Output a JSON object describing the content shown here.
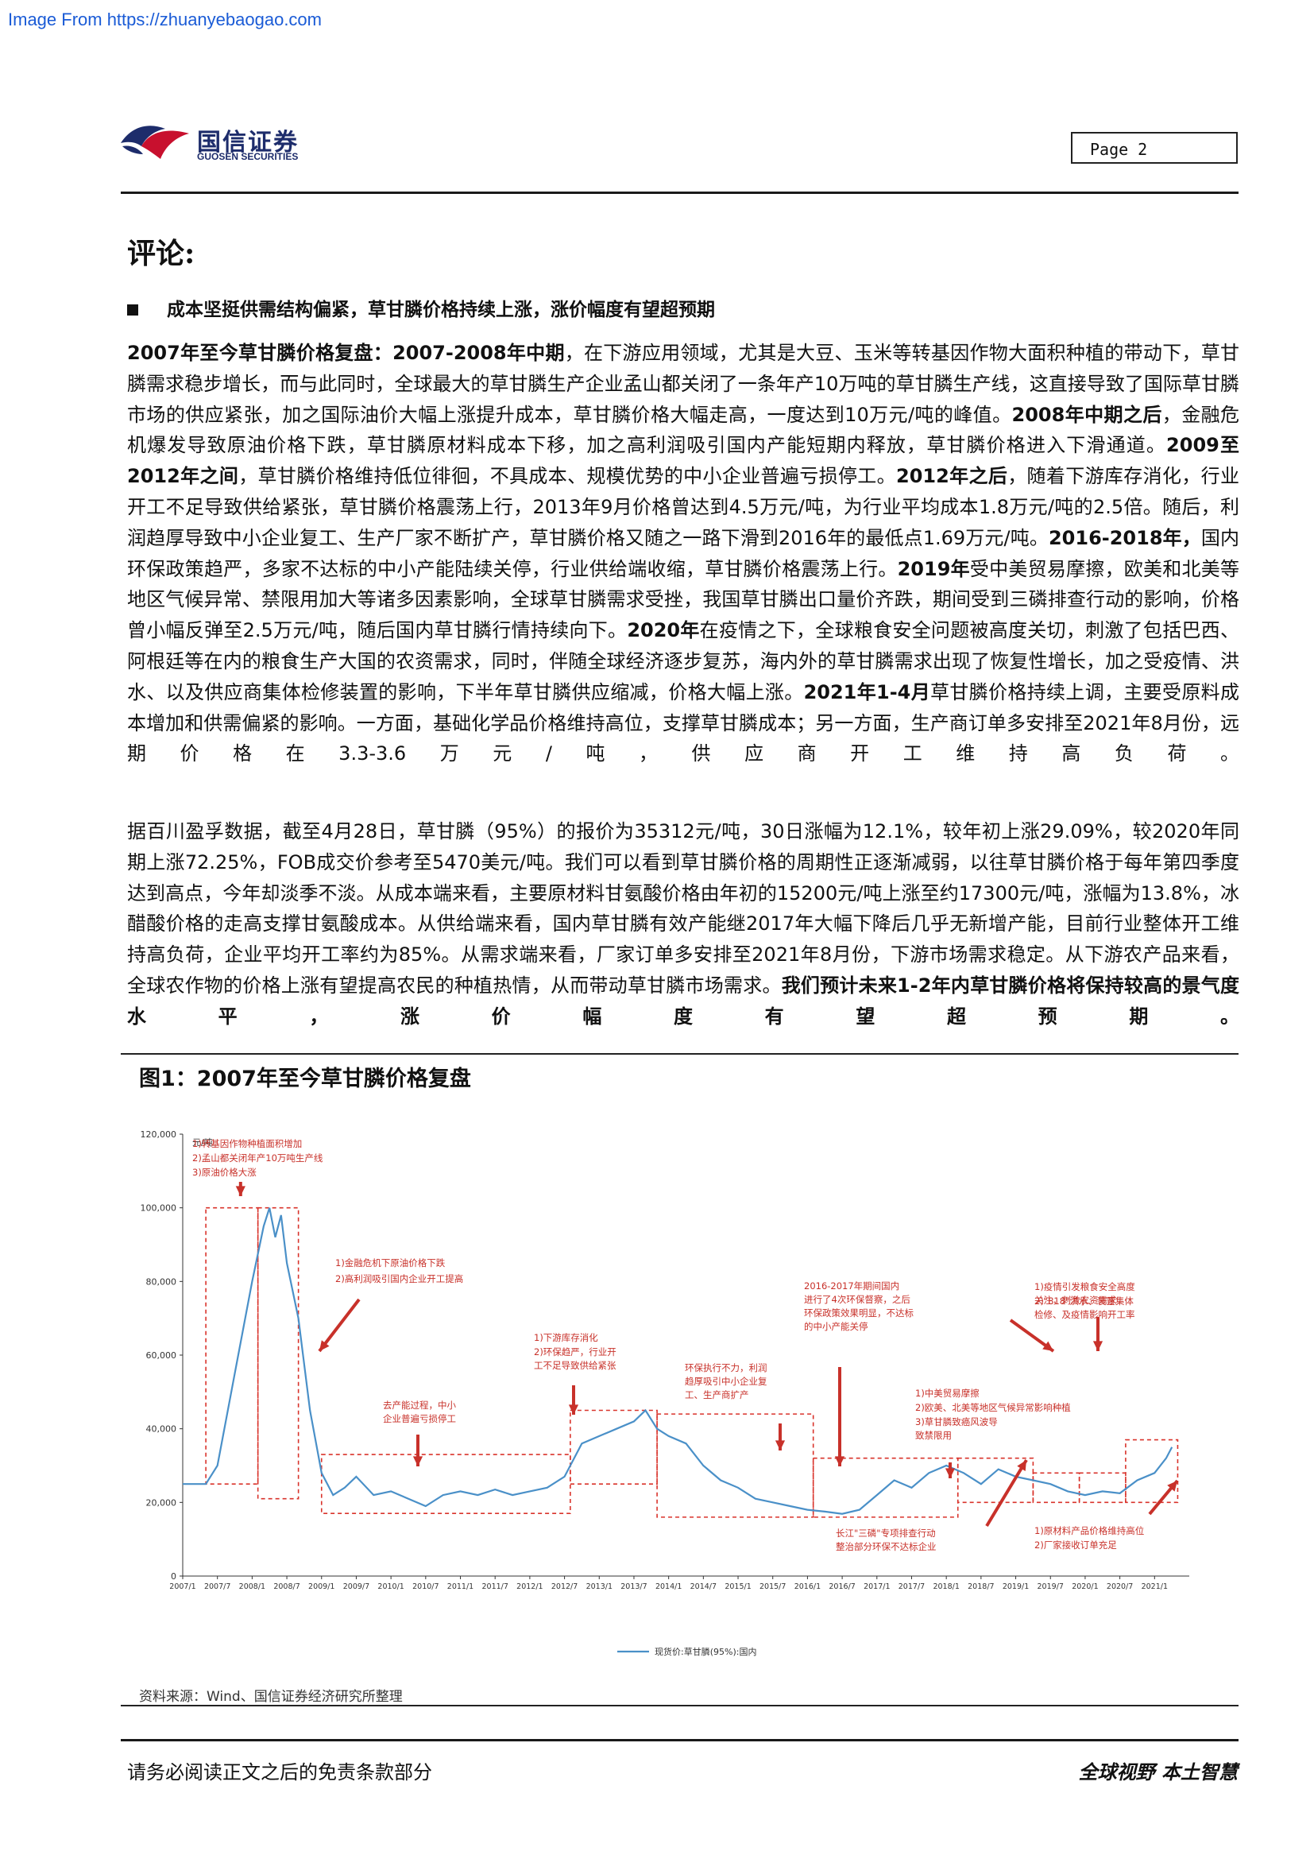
{
  "source_link": "Image From https://zhuanyebaogao.com",
  "header": {
    "logo_cn": "国信证券",
    "logo_en": "GUOSEN SECURITIES",
    "page_label": "Page",
    "page_number": "2"
  },
  "section_title": "评论:",
  "bullet_heading": "成本坚挺供需结构偏紧，草甘膦价格持续上涨，涨价幅度有望超预期",
  "para1": [
    {
      "b": true,
      "t": "2007年至今草甘膦价格复盘："
    },
    {
      "b": true,
      "t": "2007-2008年中期"
    },
    {
      "b": false,
      "t": "，在下游应用领域，尤其是大豆、玉米等转基因作物大面积种植的带动下，草甘膦需求稳步增长，而与此同时，全球最大的草甘膦生产企业孟山都关闭了一条年产10万吨的草甘膦生产线，这直接导致了国际草甘膦市场的供应紧张，加之国际油价大幅上涨提升成本，草甘膦价格大幅走高，一度达到10万元/吨的峰值。"
    },
    {
      "b": true,
      "t": "2008年中期之后"
    },
    {
      "b": false,
      "t": "，金融危机爆发导致原油价格下跌，草甘膦原材料成本下移，加之高利润吸引国内产能短期内释放，草甘膦价格进入下滑通道。"
    },
    {
      "b": true,
      "t": "2009至2012年之间"
    },
    {
      "b": false,
      "t": "，草甘膦价格维持低位徘徊，不具成本、规模优势的中小企业普遍亏损停工。"
    },
    {
      "b": true,
      "t": "2012年之后"
    },
    {
      "b": false,
      "t": "，随着下游库存消化，行业开工不足导致供给紧张，草甘膦价格震荡上行，2013年9月价格曾达到4.5万元/吨，为行业平均成本1.8万元/吨的2.5倍。随后，利润趋厚导致中小企业复工、生产厂家不断扩产，草甘膦价格又随之一路下滑到2016年的最低点1.69万元/吨。"
    },
    {
      "b": true,
      "t": "2016-2018年，"
    },
    {
      "b": false,
      "t": "国内环保政策趋严，多家不达标的中小产能陆续关停，行业供给端收缩，草甘膦价格震荡上行。"
    },
    {
      "b": true,
      "t": "2019年"
    },
    {
      "b": false,
      "t": "受中美贸易摩擦，欧美和北美等地区气候异常、禁限用加大等诸多因素影响，全球草甘膦需求受挫，我国草甘膦出口量价齐跌，期间受到三磷排查行动的影响，价格曾小幅反弹至2.5万元/吨，随后国内草甘膦行情持续向下。"
    },
    {
      "b": true,
      "t": "2020年"
    },
    {
      "b": false,
      "t": "在疫情之下，全球粮食安全问题被高度关切，刺激了包括巴西、阿根廷等在内的粮食生产大国的农资需求，同时，伴随全球经济逐步复苏，海内外的草甘膦需求出现了恢复性增长，加之受疫情、洪水、以及供应商集体检修装置的影响，下半年草甘膦供应缩减，价格大幅上涨。"
    },
    {
      "b": true,
      "t": "2021年1-4月"
    },
    {
      "b": false,
      "t": "草甘膦价格持续上调，主要受原料成本增加和供需偏紧的影响。一方面，基础化学品价格维持高位，支撑草甘膦成本；另一方面，生产商订单多安排至2021年8月份，远期价格在3.3-3.6万元/吨，供应商开工维持高负荷。"
    }
  ],
  "para2": [
    {
      "b": false,
      "t": "据百川盈孚数据，截至4月28日，草甘膦（95%）的报价为35312元/吨，30日涨幅为12.1%，较年初上涨29.09%，较2020年同期上涨72.25%，FOB成交价参考至5470美元/吨。我们可以看到草甘膦价格的周期性正逐渐减弱，以往草甘膦价格于每年第四季度达到高点，今年却淡季不淡。从成本端来看，主要原材料甘氨酸价格由年初的15200元/吨上涨至约17300元/吨，涨幅为13.8%，冰醋酸价格的走高支撑甘氨酸成本。从供给端来看，国内草甘膦有效产能继2017年大幅下降后几乎无新增产能，目前行业整体开工维持高负荷，企业平均开工率约为85%。从需求端来看，厂家订单多安排至2021年8月份，下游市场需求稳定。从下游农产品来看，全球农作物的价格上涨有望提高农民的种植热情，从而带动草甘膦市场需求。"
    },
    {
      "b": true,
      "t": "我们预计未来1-2年内草甘膦价格将保持较高的景气度水平，涨价幅度有望超预期。"
    }
  ],
  "figure_title": "图1：2007年至今草甘膦价格复盘",
  "chart_data": {
    "type": "line",
    "title": "",
    "ylabel": "元/吨",
    "xlabel": "",
    "ylim": [
      0,
      120000
    ],
    "yticks": [
      "0",
      "20,000",
      "40,000",
      "60,000",
      "80,000",
      "100,000",
      "120,000"
    ],
    "xticks": [
      "2007/1",
      "2007/7",
      "2008/1",
      "2008/7",
      "2009/1",
      "2009/7",
      "2010/1",
      "2010/7",
      "2011/1",
      "2011/7",
      "2012/1",
      "2012/7",
      "2013/1",
      "2013/7",
      "2014/1",
      "2014/7",
      "2015/1",
      "2015/7",
      "2016/1",
      "2016/7",
      "2017/1",
      "2017/7",
      "2018/1",
      "2018/7",
      "2019/1",
      "2019/7",
      "2020/1",
      "2020/7",
      "2021/1"
    ],
    "series": [
      {
        "name": "现货价:草甘膦(95%):国内",
        "color": "#4a90c8",
        "points": [
          [
            "2007/1",
            25000
          ],
          [
            "2007/5",
            25000
          ],
          [
            "2007/7",
            30000
          ],
          [
            "2007/10",
            55000
          ],
          [
            "2008/1",
            80000
          ],
          [
            "2008/3",
            95000
          ],
          [
            "2008/4",
            100000
          ],
          [
            "2008/5",
            92000
          ],
          [
            "2008/6",
            98000
          ],
          [
            "2008/7",
            85000
          ],
          [
            "2008/9",
            70000
          ],
          [
            "2008/11",
            45000
          ],
          [
            "2009/1",
            28000
          ],
          [
            "2009/3",
            22000
          ],
          [
            "2009/5",
            24000
          ],
          [
            "2009/7",
            27000
          ],
          [
            "2009/10",
            22000
          ],
          [
            "2010/1",
            23000
          ],
          [
            "2010/4",
            21000
          ],
          [
            "2010/7",
            19000
          ],
          [
            "2010/10",
            22000
          ],
          [
            "2011/1",
            23000
          ],
          [
            "2011/4",
            22000
          ],
          [
            "2011/7",
            23500
          ],
          [
            "2011/10",
            22000
          ],
          [
            "2012/1",
            23000
          ],
          [
            "2012/4",
            24000
          ],
          [
            "2012/7",
            27000
          ],
          [
            "2012/10",
            36000
          ],
          [
            "2013/1",
            38000
          ],
          [
            "2013/4",
            40000
          ],
          [
            "2013/7",
            42000
          ],
          [
            "2013/9",
            45000
          ],
          [
            "2013/11",
            40000
          ],
          [
            "2014/1",
            38000
          ],
          [
            "2014/4",
            36000
          ],
          [
            "2014/7",
            30000
          ],
          [
            "2014/10",
            26000
          ],
          [
            "2015/1",
            24000
          ],
          [
            "2015/4",
            21000
          ],
          [
            "2015/7",
            20000
          ],
          [
            "2015/10",
            19000
          ],
          [
            "2016/1",
            18000
          ],
          [
            "2016/4",
            17500
          ],
          [
            "2016/7",
            16900
          ],
          [
            "2016/10",
            18000
          ],
          [
            "2017/1",
            22000
          ],
          [
            "2017/4",
            26000
          ],
          [
            "2017/7",
            24000
          ],
          [
            "2017/10",
            28000
          ],
          [
            "2018/1",
            30000
          ],
          [
            "2018/4",
            28000
          ],
          [
            "2018/7",
            25000
          ],
          [
            "2018/10",
            29000
          ],
          [
            "2019/1",
            27000
          ],
          [
            "2019/4",
            26000
          ],
          [
            "2019/7",
            25000
          ],
          [
            "2019/10",
            23000
          ],
          [
            "2020/1",
            22000
          ],
          [
            "2020/4",
            23000
          ],
          [
            "2020/7",
            22500
          ],
          [
            "2020/10",
            26000
          ],
          [
            "2021/1",
            28000
          ],
          [
            "2021/3",
            32000
          ],
          [
            "2021/4",
            35000
          ]
        ]
      }
    ],
    "annotations": [
      {
        "label": "1)转基因作物种植面积增加",
        "line": 1
      },
      {
        "label": "2)孟山都关闭年产10万吨生产线",
        "line": 2
      },
      {
        "label": "3)原油价格大涨",
        "line": 3
      },
      {
        "label": "1)金融危机下原油价格下跌",
        "line": 1
      },
      {
        "label": "2)高利润吸引国内企业开工提高",
        "line": 2
      },
      {
        "label": "去产能过程，中小企业普遍亏损停工",
        "line": 1
      },
      {
        "label": "1)下游库存消化",
        "line": 1
      },
      {
        "label": "2)环保趋严，行业开工不足导致供给紧张",
        "line": 2
      },
      {
        "label": "环保执行不力，利润趋厚吸引中小企业复工、生产商扩产",
        "line": 1
      },
      {
        "label": "2016-2017年期间国内进行了4次环保督察，之后环保政策效果明显，不达标的中小产能关停",
        "line": 1
      },
      {
        "label": "1)中美贸易摩擦",
        "line": 1
      },
      {
        "label": "2)欧美、北美等地区气候异常影响种植",
        "line": 2
      },
      {
        "label": "3)草甘膦致癌风波导致禁限用",
        "line": 3
      },
      {
        "label": "长江\"三磷\"专项排查行动整治部分环保不达标企业",
        "line": 1
      },
      {
        "label": "1)疫情引发粮食安全高度关注，刺激农资需求",
        "line": 1
      },
      {
        "label": "2)\"818\"洪水、装置集体检修、及疫情影响开工率",
        "line": 2
      },
      {
        "label": "1)原材料产品价格维持高位",
        "line": 1
      },
      {
        "label": "2)厂家接收订单充足",
        "line": 2
      }
    ],
    "grid": false,
    "legend_position": "bottom"
  },
  "figure_source": "资料来源：Wind、国信证券经济研究所整理",
  "footer": {
    "left": "请务必阅读正文之后的免责条款部分",
    "right": "全球视野 本土智慧"
  }
}
